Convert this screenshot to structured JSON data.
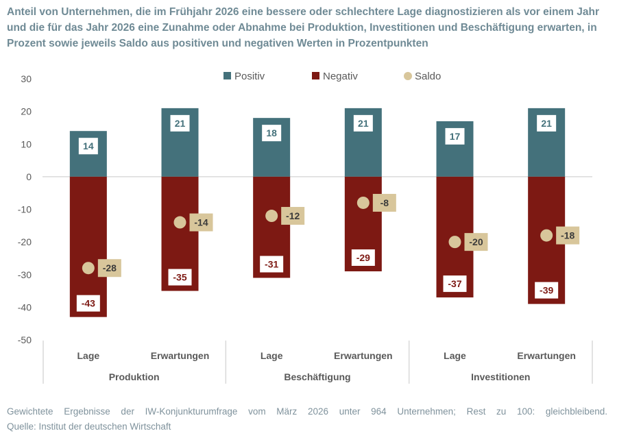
{
  "title": "Anteil von Unternehmen, die im Frühjahr 2026 eine bessere oder schlechtere Lage diagnostizieren als vor einem Jahr und die für das Jahr 2026 eine Zunahme oder Abnahme bei Produktion, Investitionen und Beschäftigung erwarten, in Prozent sowie jeweils Saldo aus positiven und negativen Werten in Prozentpunkten",
  "footer": {
    "line1": "Gewichtete Ergebnisse der IW-Konjunkturumfrage vom März 2026 unter 964 Unternehmen; Rest zu 100: gleichbleibend.",
    "line2": "Quelle: Institut der deutschen Wirtschaft"
  },
  "chart_data": {
    "type": "bar",
    "categories": [
      "Lage",
      "Erwartungen",
      "Lage",
      "Erwartungen",
      "Lage",
      "Erwartungen"
    ],
    "groups": [
      {
        "label": "Produktion",
        "span": 2
      },
      {
        "label": "Beschäftigung",
        "span": 2
      },
      {
        "label": "Investitionen",
        "span": 2
      }
    ],
    "series": [
      {
        "name": "Positiv",
        "kind": "bar",
        "color": "#44717b",
        "values": [
          14,
          21,
          18,
          21,
          17,
          21
        ]
      },
      {
        "name": "Negativ",
        "kind": "bar",
        "color": "#7d1913",
        "values": [
          -43,
          -35,
          -31,
          -29,
          -37,
          -39
        ]
      },
      {
        "name": "Saldo",
        "kind": "point",
        "color": "#d8c69b",
        "values": [
          -28,
          -14,
          -12,
          -8,
          -20,
          -18
        ]
      }
    ],
    "positive_display": [
      14,
      21,
      18,
      21,
      17,
      21
    ],
    "yticks": [
      30,
      20,
      10,
      0,
      -10,
      -20,
      -30,
      -40,
      -50
    ],
    "ylim": [
      -50,
      30
    ],
    "grid": false,
    "legend": "top"
  }
}
